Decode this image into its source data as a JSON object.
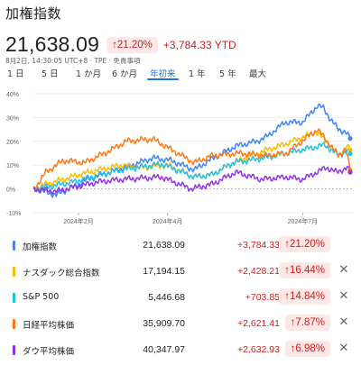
{
  "header": {
    "title": "加権指数"
  },
  "quote": {
    "price": "21,638.09",
    "pct_badge": "↑21.20%",
    "ytd": "+3,784.33 YTD",
    "timestamp": "8月2日, 14:30:05 UTC+8 · TPE · 免責事項"
  },
  "tabs": [
    {
      "label": "1 日",
      "active": false
    },
    {
      "label": "5 日",
      "active": false
    },
    {
      "label": "1 か月",
      "active": false
    },
    {
      "label": "6 か月",
      "active": false
    },
    {
      "label": "年初来",
      "active": true
    },
    {
      "label": "1 年",
      "active": false
    },
    {
      "label": "5 年",
      "active": false
    },
    {
      "label": "最大",
      "active": false
    }
  ],
  "colors": {
    "up_red": "#c5221f",
    "up_red_bg": "#fce8e6",
    "active_tab": "#1a73e8",
    "series": [
      "#4285f4",
      "#fbbc04",
      "#24c1e0",
      "#fa7b17",
      "#9334e6"
    ]
  },
  "chart_data": {
    "type": "line",
    "y_unit": "%",
    "yticks": [
      "40%",
      "30%",
      "20%",
      "10%",
      "0%",
      "-10%"
    ],
    "ylim": [
      -10,
      40
    ],
    "x_labels": [
      "2024年2月",
      "2024年4月",
      "2024年7月"
    ],
    "x_domain": [
      "2024-01-01",
      "2024-08-02"
    ],
    "x_label_dates": [
      "2024-02-01",
      "2024-04-01",
      "2024-07-01"
    ],
    "series": [
      {
        "name": "加権指数",
        "color": "#4285f4",
        "points": [
          [
            "2024-01-02",
            0
          ],
          [
            "2024-01-08",
            -1
          ],
          [
            "2024-01-17",
            -2.5
          ],
          [
            "2024-01-22",
            -1
          ],
          [
            "2024-01-29",
            1
          ],
          [
            "2024-02-07",
            4
          ],
          [
            "2024-02-22",
            7
          ],
          [
            "2024-03-08",
            10
          ],
          [
            "2024-03-22",
            13
          ],
          [
            "2024-04-03",
            12
          ],
          [
            "2024-04-19",
            8
          ],
          [
            "2024-05-02",
            13
          ],
          [
            "2024-05-17",
            18
          ],
          [
            "2024-05-31",
            20
          ],
          [
            "2024-06-07",
            22
          ],
          [
            "2024-06-19",
            28
          ],
          [
            "2024-07-01",
            28
          ],
          [
            "2024-07-11",
            35
          ],
          [
            "2024-07-15",
            34
          ],
          [
            "2024-07-19",
            30
          ],
          [
            "2024-07-25",
            25
          ],
          [
            "2024-07-30",
            24
          ],
          [
            "2024-08-02",
            21.2
          ]
        ]
      },
      {
        "name": "ナスダック総合指数",
        "color": "#fbbc04",
        "points": [
          [
            "2024-01-02",
            0
          ],
          [
            "2024-01-10",
            2
          ],
          [
            "2024-01-22",
            4
          ],
          [
            "2024-02-01",
            6
          ],
          [
            "2024-02-15",
            8
          ],
          [
            "2024-03-01",
            10
          ],
          [
            "2024-03-15",
            9
          ],
          [
            "2024-04-01",
            10
          ],
          [
            "2024-04-19",
            5
          ],
          [
            "2024-05-01",
            6
          ],
          [
            "2024-05-15",
            11
          ],
          [
            "2024-06-05",
            16
          ],
          [
            "2024-06-20",
            19
          ],
          [
            "2024-07-10",
            24
          ],
          [
            "2024-07-17",
            20
          ],
          [
            "2024-07-25",
            14
          ],
          [
            "2024-07-31",
            18
          ],
          [
            "2024-08-02",
            16.4
          ]
        ]
      },
      {
        "name": "S&P 500",
        "color": "#24c1e0",
        "points": [
          [
            "2024-01-02",
            0
          ],
          [
            "2024-01-12",
            1
          ],
          [
            "2024-01-29",
            3
          ],
          [
            "2024-02-15",
            6
          ],
          [
            "2024-03-01",
            8
          ],
          [
            "2024-03-28",
            10.5
          ],
          [
            "2024-04-19",
            5
          ],
          [
            "2024-05-01",
            6
          ],
          [
            "2024-05-15",
            11
          ],
          [
            "2024-06-05",
            13
          ],
          [
            "2024-06-20",
            15
          ],
          [
            "2024-07-16",
            18.5
          ],
          [
            "2024-07-25",
            14
          ],
          [
            "2024-07-31",
            16
          ],
          [
            "2024-08-02",
            14.8
          ]
        ]
      },
      {
        "name": "日経平均株価",
        "color": "#fa7b17",
        "points": [
          [
            "2024-01-02",
            0
          ],
          [
            "2024-01-10",
            7
          ],
          [
            "2024-01-22",
            12
          ],
          [
            "2024-02-05",
            11
          ],
          [
            "2024-02-22",
            16
          ],
          [
            "2024-03-04",
            20
          ],
          [
            "2024-03-22",
            21
          ],
          [
            "2024-04-05",
            16
          ],
          [
            "2024-04-19",
            11
          ],
          [
            "2024-05-01",
            14
          ],
          [
            "2024-05-20",
            15
          ],
          [
            "2024-06-05",
            14
          ],
          [
            "2024-06-20",
            15
          ],
          [
            "2024-07-11",
            25
          ],
          [
            "2024-07-19",
            19
          ],
          [
            "2024-07-25",
            14
          ],
          [
            "2024-07-30",
            17
          ],
          [
            "2024-08-02",
            7.9
          ]
        ]
      },
      {
        "name": "ダウ平均株価",
        "color": "#9334e6",
        "points": [
          [
            "2024-01-02",
            0
          ],
          [
            "2024-01-17",
            -1
          ],
          [
            "2024-01-31",
            1
          ],
          [
            "2024-02-15",
            3
          ],
          [
            "2024-03-01",
            4
          ],
          [
            "2024-03-28",
            5
          ],
          [
            "2024-04-17",
            0
          ],
          [
            "2024-05-01",
            2
          ],
          [
            "2024-05-17",
            7
          ],
          [
            "2024-06-03",
            4
          ],
          [
            "2024-06-20",
            5
          ],
          [
            "2024-07-01",
            4
          ],
          [
            "2024-07-17",
            9
          ],
          [
            "2024-07-24",
            7
          ],
          [
            "2024-07-31",
            9
          ],
          [
            "2024-08-02",
            7
          ]
        ]
      }
    ]
  },
  "table": {
    "rows": [
      {
        "name": "加権指数",
        "color": "#4285f4",
        "value": "21,638.09",
        "change": "+3,784.33",
        "pct": "↑21.20%",
        "removable": false
      },
      {
        "name": "ナスダック総合指数",
        "color": "#fbbc04",
        "value": "17,194.15",
        "change": "+2,428.21",
        "pct": "↑16.44%",
        "removable": true
      },
      {
        "name": "S&P 500",
        "color": "#24c1e0",
        "value": "5,446.68",
        "change": "+703.85",
        "pct": "↑14.84%",
        "removable": true
      },
      {
        "name": "日経平均株価",
        "color": "#fa7b17",
        "value": "35,909.70",
        "change": "+2,621.41",
        "pct": "↑7.87%",
        "removable": true
      },
      {
        "name": "ダウ平均株価",
        "color": "#9334e6",
        "value": "40,347.97",
        "change": "+2,632.93",
        "pct": "↑6.98%",
        "removable": true
      }
    ],
    "remove_glyph": "✕"
  }
}
